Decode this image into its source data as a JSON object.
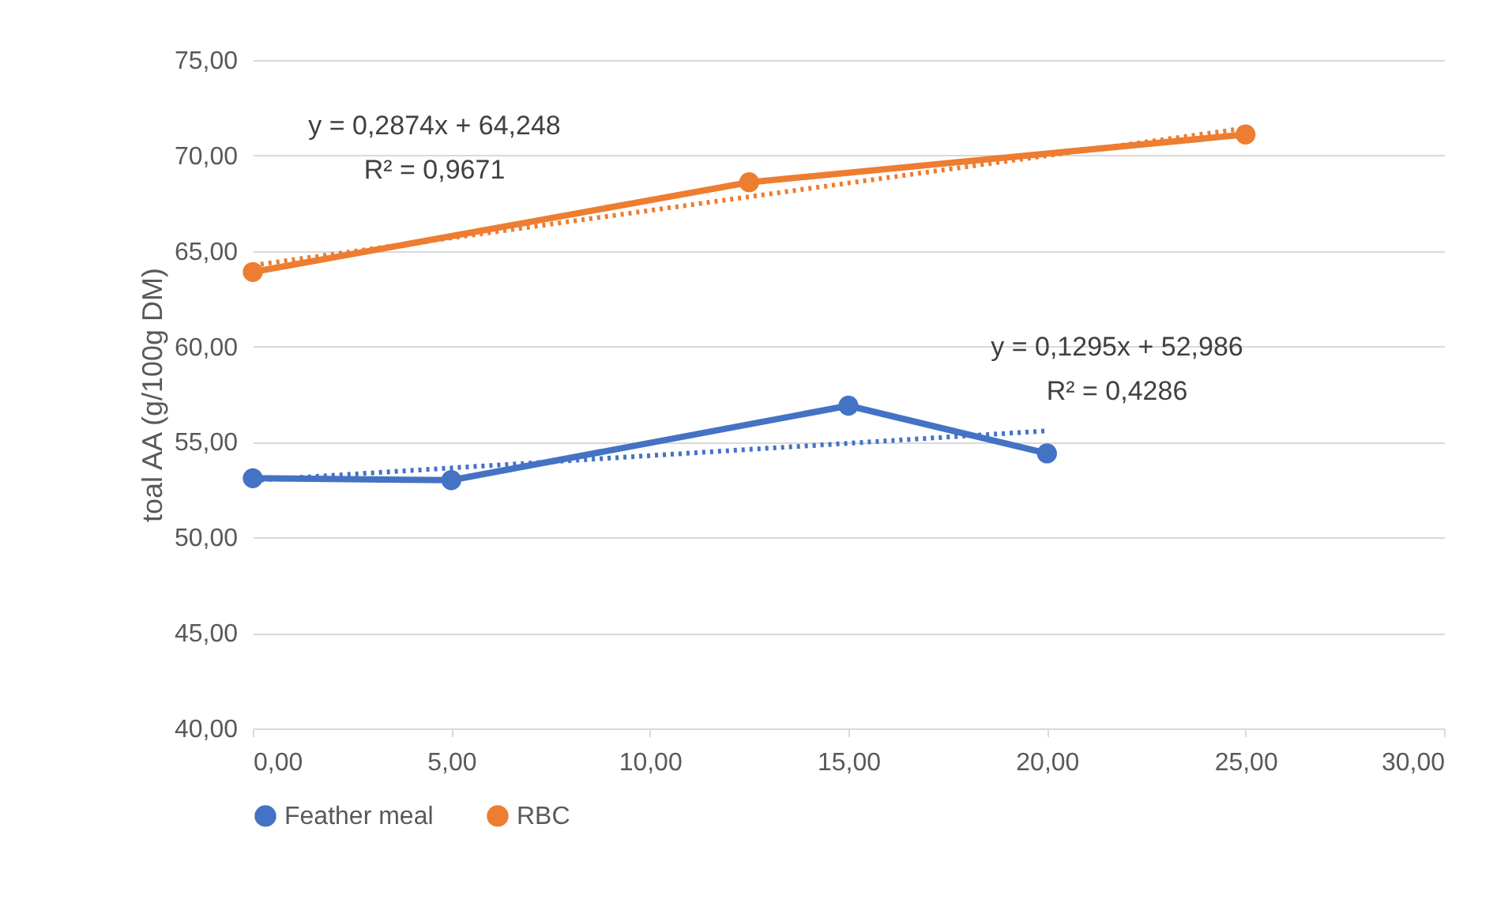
{
  "chart_data": {
    "type": "line",
    "ylabel": "toal AA (g/100g DM)",
    "series": [
      {
        "name": "Feather meal",
        "color": "#4472c4",
        "x": [
          0,
          5,
          15,
          20
        ],
        "values": [
          53.1,
          53.0,
          56.9,
          54.4
        ]
      },
      {
        "name": "RBC",
        "color": "#ed7d31",
        "x": [
          0,
          12.5,
          25
        ],
        "values": [
          63.9,
          68.6,
          71.1
        ]
      },
      {
        "type": "line",
        "color": "#4472c4",
        "line_style": "dotted",
        "marker": "none",
        "x": [
          0,
          20
        ],
        "values": [
          52.99,
          55.58
        ]
      },
      {
        "type": "line",
        "color": "#ed7d31",
        "line_style": "dotted",
        "marker": "none",
        "x": [
          0,
          25
        ],
        "values": [
          64.25,
          71.43
        ]
      }
    ],
    "annotations": [
      "y = 0,2874x + 64,248",
      "R² = 0,9671",
      "y = 0,1295x + 52,986",
      "R² = 0,4286"
    ],
    "xlim": [
      0,
      30
    ],
    "xticks": [
      {
        "value": 0,
        "label": "0,00"
      },
      {
        "value": 5,
        "label": "5,00"
      },
      {
        "value": 10,
        "label": "10,00"
      },
      {
        "value": 15,
        "label": "15,00"
      },
      {
        "value": 20,
        "label": "20,00"
      },
      {
        "value": 25,
        "label": "25,00"
      },
      {
        "value": 30,
        "label": "30,00"
      }
    ],
    "ylim": [
      40,
      75
    ],
    "yticks": [
      {
        "value": 40,
        "label": "40,00"
      },
      {
        "value": 45,
        "label": "45,00"
      },
      {
        "value": 50,
        "label": "50,00"
      },
      {
        "value": 55,
        "label": "55,00"
      },
      {
        "value": 60,
        "label": "60,00"
      },
      {
        "value": 65,
        "label": "65,00"
      },
      {
        "value": 70,
        "label": "70,00"
      },
      {
        "value": 75,
        "label": "75,00"
      }
    ],
    "grid": "y",
    "legend": "bottom",
    "marker": "circle",
    "line_style": "solid"
  }
}
